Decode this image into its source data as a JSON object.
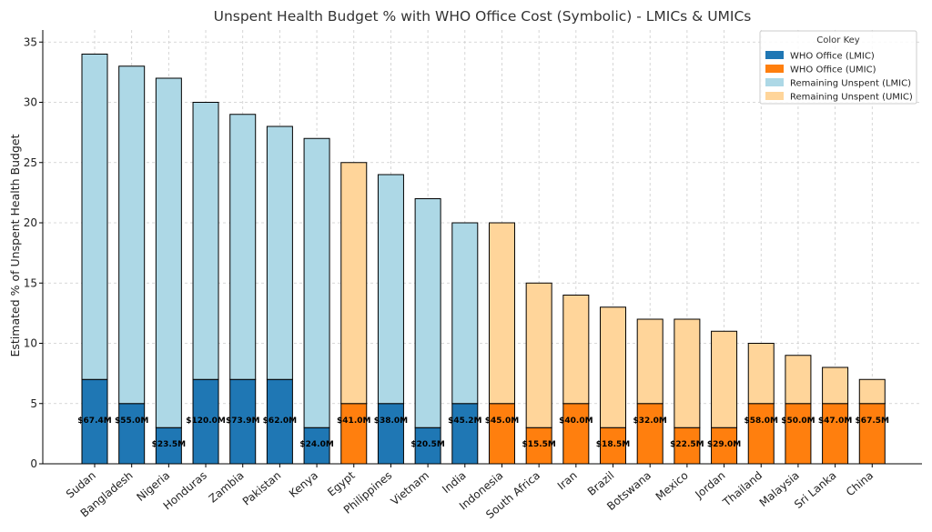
{
  "chart_data": {
    "type": "bar",
    "stacked": true,
    "title": "Unspent Health Budget % with WHO Office Cost (Symbolic) - LMICs & UMICs",
    "ylabel": "Estimated % of Unspent Health Budget",
    "xlabel": "",
    "ylim": [
      0,
      36
    ],
    "yticks": [
      0,
      5,
      10,
      15,
      20,
      25,
      30,
      35
    ],
    "grid": true,
    "legend": {
      "title": "Color Key",
      "placement": "top-right",
      "entries": [
        {
          "label": "WHO Office (LMIC)",
          "color": "#1f77b4"
        },
        {
          "label": "WHO Office (UMIC)",
          "color": "#ff7f0e"
        },
        {
          "label": "Remaining Unspent (LMIC)",
          "color": "#add8e6"
        },
        {
          "label": "Remaining Unspent (UMIC)",
          "color": "#ffd59a"
        }
      ]
    },
    "colors": {
      "lmic_office": "#1f77b4",
      "umic_office": "#ff7f0e",
      "lmic_remaining": "#add8e6",
      "umic_remaining": "#ffd59a"
    },
    "categories": [
      "Sudan",
      "Bangladesh",
      "Nigeria",
      "Honduras",
      "Zambia",
      "Pakistan",
      "Kenya",
      "Egypt",
      "Philippines",
      "Vietnam",
      "India",
      "Indonesia",
      "South Africa",
      "Iran",
      "Brazil",
      "Botswana",
      "Mexico",
      "Jordan",
      "Thailand",
      "Malaysia",
      "Sri Lanka",
      "China"
    ],
    "group": [
      "LMIC",
      "LMIC",
      "LMIC",
      "LMIC",
      "LMIC",
      "LMIC",
      "LMIC",
      "UMIC",
      "LMIC",
      "LMIC",
      "LMIC",
      "UMIC",
      "UMIC",
      "UMIC",
      "UMIC",
      "UMIC",
      "UMIC",
      "UMIC",
      "UMIC",
      "UMIC",
      "UMIC",
      "UMIC"
    ],
    "total_unspent": [
      34,
      33,
      32,
      30,
      29,
      28,
      27,
      25,
      24,
      22,
      20,
      20,
      15,
      14,
      13,
      12,
      12,
      11,
      10,
      9,
      8,
      7
    ],
    "who_office": [
      7,
      5,
      3,
      7,
      7,
      7,
      3,
      5,
      5,
      3,
      5,
      5,
      3,
      5,
      3,
      5,
      3,
      3,
      5,
      5,
      5,
      5
    ],
    "cost_labels": [
      "$67.4M",
      "$55.0M",
      "$23.5M",
      "$120.0M",
      "$73.9M",
      "$62.0M",
      "$24.0M",
      "$41.0M",
      "$38.0M",
      "$20.5M",
      "$45.2M",
      "$45.0M",
      "$15.5M",
      "$40.0M",
      "$18.5M",
      "$32.0M",
      "$22.5M",
      "$29.0M",
      "$58.0M",
      "$50.0M",
      "$47.0M",
      "$67.5M"
    ]
  }
}
